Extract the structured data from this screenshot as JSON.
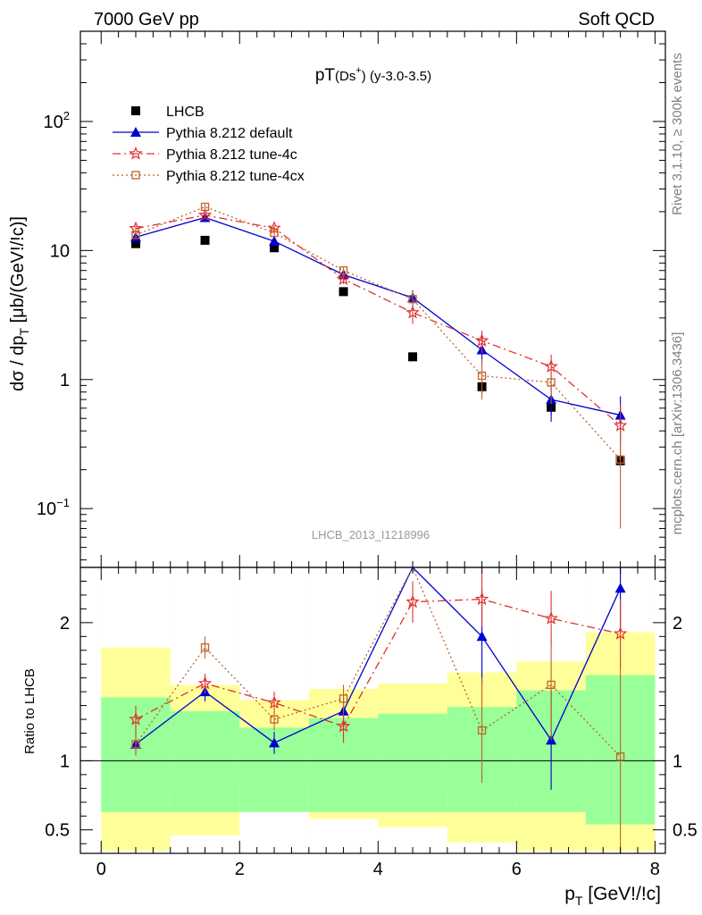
{
  "header": {
    "left": "7000 GeV pp",
    "right": "Soft QCD"
  },
  "side_labels": {
    "upper": "Rivet 3.1.10, ≥ 300k events",
    "lower": "mcplots.cern.ch [arXiv:1306.3436]"
  },
  "watermark": "LHCB_2013_I1218996",
  "chart_data": [
    {
      "type": "line",
      "title": {
        "main": "pT",
        "sub": "(Ds",
        "sup": "+",
        "close": ")",
        "tail": " (y-3.0-3.5)"
      },
      "ylabel": "dσ / dp_T [μb/(GeV!/!c)]",
      "yscale": "log",
      "xlim": [
        -0.3,
        8.15
      ],
      "ylim": [
        0.035,
        500
      ],
      "y_ticks": [
        {
          "value": 0.1,
          "label": "10",
          "sup": "−1"
        },
        {
          "value": 1,
          "label": "1",
          "sup": ""
        },
        {
          "value": 10,
          "label": "10",
          "sup": ""
        },
        {
          "value": 100,
          "label": "10",
          "sup": "2"
        }
      ],
      "legend_position": "top-left",
      "series": [
        {
          "name": "LHCB",
          "style": "data",
          "color": "#000000",
          "x": [
            0.5,
            1.5,
            2.5,
            3.5,
            4.5,
            5.5,
            6.5,
            7.5
          ],
          "y": [
            11.3,
            12.0,
            10.5,
            4.8,
            1.5,
            0.88,
            0.61,
            0.235
          ],
          "err": [
            0.6,
            0.8,
            0.5,
            0.3,
            0.1,
            0.1,
            0.08,
            0.02
          ]
        },
        {
          "name": "Pythia 8.212 default",
          "style": "solid",
          "marker": "triangle",
          "color": "#0000d0",
          "x": [
            0.5,
            1.5,
            2.5,
            3.5,
            4.5,
            5.5,
            6.5,
            7.5
          ],
          "y": [
            12.7,
            18.0,
            11.8,
            6.5,
            4.3,
            1.7,
            0.7,
            0.53
          ],
          "err": [
            0.6,
            0.8,
            0.6,
            0.5,
            0.6,
            0.4,
            0.23,
            0.21
          ]
        },
        {
          "name": "Pythia 8.212 tune-4c",
          "style": "dashdot",
          "marker": "star",
          "color": "#e03030",
          "x": [
            0.5,
            1.5,
            2.5,
            3.5,
            4.5,
            5.5,
            6.5,
            7.5
          ],
          "y": [
            14.8,
            18.8,
            14.9,
            6.0,
            3.3,
            2.0,
            1.26,
            0.44
          ],
          "err": [
            0.7,
            0.9,
            0.7,
            0.5,
            0.6,
            0.4,
            0.3,
            0.2
          ]
        },
        {
          "name": "Pythia 8.212 tune-4cx",
          "style": "dotted",
          "marker": "square",
          "color": "#c0622a",
          "x": [
            0.5,
            1.5,
            2.5,
            3.5,
            4.5,
            5.5,
            6.5,
            7.5
          ],
          "y": [
            13.2,
            21.8,
            13.7,
            7.0,
            4.2,
            1.07,
            0.95,
            0.24
          ],
          "err": [
            0.7,
            1.0,
            0.7,
            0.5,
            0.6,
            0.37,
            0.3,
            0.17
          ]
        }
      ]
    },
    {
      "type": "line",
      "xlabel": "p_T [GeV!/!c]",
      "ylabel": "Ratio to LHCB",
      "xlim": [
        -0.3,
        8.15
      ],
      "ylim": [
        0.33,
        2.4
      ],
      "x_ticks": [
        0,
        2,
        4,
        6,
        8
      ],
      "y_ticks": [
        0.5,
        1,
        2
      ],
      "reference_line": 1,
      "bands": {
        "x_edges": [
          0,
          1,
          2,
          3,
          4,
          5,
          6,
          7,
          8
        ],
        "green_lower": [
          0.63,
          0.63,
          0.63,
          0.63,
          0.63,
          0.63,
          0.63,
          0.54
        ],
        "green_upper": [
          1.46,
          1.36,
          1.24,
          1.31,
          1.34,
          1.39,
          1.51,
          1.62
        ],
        "yellow_lower": [
          0.35,
          0.78,
          0.85,
          0.82,
          0.8,
          0.76,
          0.71,
          0.35
        ],
        "yellow_upper": [
          1.82,
          1.55,
          1.44,
          1.52,
          1.56,
          1.64,
          1.72,
          1.93
        ],
        "white_lower": [
          0.35,
          0.46,
          0.67,
          0.58,
          0.52,
          0.41,
          0.35,
          0.35
        ]
      },
      "series": [
        {
          "name": "Pythia 8.212 default",
          "style": "solid",
          "marker": "triangle",
          "color": "#0000d0",
          "x": [
            0.5,
            1.5,
            2.5,
            3.5,
            4.5,
            5.5,
            6.5,
            7.5
          ],
          "y": [
            1.12,
            1.5,
            1.13,
            1.36,
            2.9,
            1.9,
            1.15,
            2.25
          ],
          "err": [
            0.08,
            0.07,
            0.08,
            0.1,
            0.2,
            0.35,
            0.36,
            0.3
          ]
        },
        {
          "name": "Pythia 8.212 tune-4c",
          "style": "dashdot",
          "marker": "star",
          "color": "#e03030",
          "x": [
            0.5,
            1.5,
            2.5,
            3.5,
            4.5,
            5.5,
            6.5,
            7.5
          ],
          "y": [
            1.3,
            1.56,
            1.42,
            1.25,
            2.15,
            2.17,
            2.03,
            1.92
          ],
          "err": [
            0.1,
            0.07,
            0.08,
            0.12,
            0.15,
            0.2,
            0.2,
            0.25
          ]
        },
        {
          "name": "Pythia 8.212 tune-4cx",
          "style": "dotted",
          "marker": "square",
          "color": "#c0622a",
          "x": [
            0.5,
            1.5,
            2.5,
            3.5,
            4.5,
            5.5,
            6.5,
            7.5
          ],
          "y": [
            1.12,
            1.82,
            1.3,
            1.45,
            2.9,
            1.22,
            1.55,
            1.03
          ],
          "err": [
            0.08,
            0.08,
            0.08,
            0.1,
            0.2,
            0.38,
            0.4,
            0.7
          ]
        }
      ]
    }
  ]
}
